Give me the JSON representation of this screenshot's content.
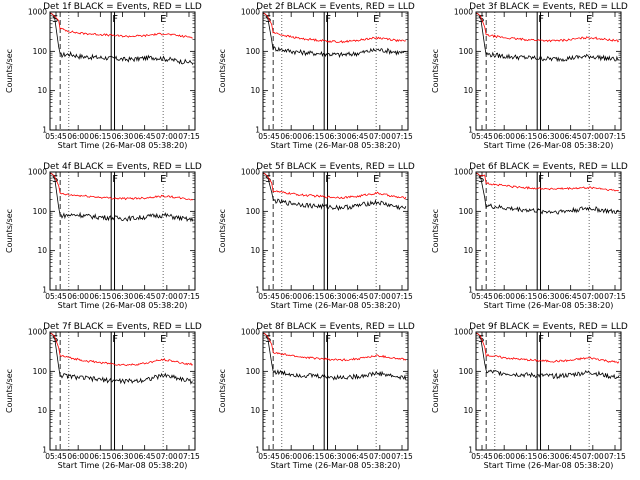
{
  "chart_data": [
    {
      "type": "line",
      "title": "Det 1f BLACK = Events, RED = LLD",
      "xlabel": "Start Time (26-Mar-08 05:38:20)",
      "ylabel": "Counts/sec",
      "yscale": "log",
      "ylim": [
        1,
        1000
      ],
      "x_ticks": [
        "05:45",
        "06:00",
        "06:15",
        "06:30",
        "06:45",
        "07:00",
        "07:15"
      ],
      "y_ticks": [
        "1",
        "10",
        "100",
        "1000"
      ],
      "markers": [
        {
          "label": "S",
          "pos": 0.0
        },
        {
          "label": "F",
          "pos": 0.422
        },
        {
          "label": "E",
          "pos": 0.78
        }
      ],
      "series": [
        {
          "name": "Events",
          "color": "#000000",
          "values": [
            80,
            85,
            75,
            72,
            70,
            68,
            65,
            62,
            64,
            68,
            70,
            65,
            60,
            55,
            52
          ]
        },
        {
          "name": "LLD",
          "color": "#ff0000",
          "values": [
            380,
            320,
            290,
            280,
            270,
            260,
            250,
            240,
            245,
            250,
            270,
            280,
            260,
            240,
            230
          ]
        }
      ]
    },
    {
      "type": "line",
      "title": "Det 2f BLACK = Events, RED = LLD",
      "xlabel": "Start Time (26-Mar-08 05:38:20)",
      "ylabel": "Counts/sec",
      "yscale": "log",
      "ylim": [
        1,
        1000
      ],
      "x_ticks": [
        "05:45",
        "06:00",
        "06:15",
        "06:30",
        "06:45",
        "07:00",
        "07:15"
      ],
      "y_ticks": [
        "1",
        "10",
        "100",
        "1000"
      ],
      "markers": [
        {
          "label": "S",
          "pos": 0.0
        },
        {
          "label": "F",
          "pos": 0.422
        },
        {
          "label": "E",
          "pos": 0.78
        }
      ],
      "series": [
        {
          "name": "Events",
          "color": "#000000",
          "values": [
            120,
            110,
            100,
            95,
            90,
            88,
            85,
            82,
            84,
            90,
            100,
            110,
            105,
            95,
            90
          ]
        },
        {
          "name": "LLD",
          "color": "#ff0000",
          "values": [
            300,
            260,
            230,
            210,
            200,
            190,
            180,
            175,
            180,
            190,
            210,
            220,
            210,
            190,
            180
          ]
        }
      ]
    },
    {
      "type": "line",
      "title": "Det 3f BLACK = Events, RED = LLD",
      "xlabel": "Start Time (26-Mar-08 05:38:20)",
      "ylabel": "Counts/sec",
      "yscale": "log",
      "ylim": [
        1,
        1000
      ],
      "x_ticks": [
        "05:45",
        "06:00",
        "06:15",
        "06:30",
        "06:45",
        "07:00",
        "07:15"
      ],
      "y_ticks": [
        "1",
        "10",
        "100",
        "1000"
      ],
      "markers": [
        {
          "label": "S",
          "pos": 0.0
        },
        {
          "label": "F",
          "pos": 0.422
        },
        {
          "label": "E",
          "pos": 0.78
        }
      ],
      "series": [
        {
          "name": "Events",
          "color": "#000000",
          "values": [
            85,
            80,
            75,
            72,
            70,
            68,
            66,
            64,
            65,
            68,
            72,
            75,
            70,
            65,
            62
          ]
        },
        {
          "name": "LLD",
          "color": "#ff0000",
          "values": [
            260,
            240,
            220,
            210,
            200,
            195,
            190,
            185,
            190,
            200,
            215,
            225,
            210,
            195,
            185
          ]
        }
      ]
    },
    {
      "type": "line",
      "title": "Det 4f BLACK = Events, RED = LLD",
      "xlabel": "Start Time (26-Mar-08 05:38:20)",
      "ylabel": "Counts/sec",
      "yscale": "log",
      "ylim": [
        1,
        1000
      ],
      "x_ticks": [
        "05:45",
        "06:00",
        "06:15",
        "06:30",
        "06:45",
        "07:00",
        "07:15"
      ],
      "y_ticks": [
        "1",
        "10",
        "100",
        "1000"
      ],
      "markers": [
        {
          "label": "S",
          "pos": 0.0
        },
        {
          "label": "F",
          "pos": 0.422
        },
        {
          "label": "E",
          "pos": 0.78
        }
      ],
      "series": [
        {
          "name": "Events",
          "color": "#000000",
          "values": [
            78,
            80,
            82,
            75,
            72,
            70,
            68,
            66,
            68,
            72,
            78,
            80,
            72,
            65,
            60
          ]
        },
        {
          "name": "LLD",
          "color": "#ff0000",
          "values": [
            280,
            260,
            250,
            240,
            230,
            220,
            215,
            210,
            215,
            220,
            235,
            245,
            230,
            210,
            200
          ]
        }
      ]
    },
    {
      "type": "line",
      "title": "Det 5f BLACK = Events, RED = LLD",
      "xlabel": "Start Time (26-Mar-08 05:38:20)",
      "ylabel": "Counts/sec",
      "yscale": "log",
      "ylim": [
        1,
        1000
      ],
      "x_ticks": [
        "05:45",
        "06:00",
        "06:15",
        "06:30",
        "06:45",
        "07:00",
        "07:15"
      ],
      "y_ticks": [
        "1",
        "10",
        "100",
        "1000"
      ],
      "markers": [
        {
          "label": "S",
          "pos": 0.0
        },
        {
          "label": "F",
          "pos": 0.422
        },
        {
          "label": "E",
          "pos": 0.78
        }
      ],
      "series": [
        {
          "name": "Events",
          "color": "#000000",
          "values": [
            190,
            170,
            160,
            150,
            140,
            135,
            130,
            125,
            130,
            140,
            160,
            170,
            150,
            130,
            120
          ]
        },
        {
          "name": "LLD",
          "color": "#ff0000",
          "values": [
            330,
            300,
            280,
            260,
            250,
            240,
            230,
            225,
            230,
            240,
            270,
            290,
            260,
            230,
            220
          ]
        }
      ]
    },
    {
      "type": "line",
      "title": "Det 6f BLACK = Events, RED = LLD",
      "xlabel": "Start Time (26-Mar-08 05:38:20)",
      "ylabel": "Counts/sec",
      "yscale": "log",
      "ylim": [
        1,
        1000
      ],
      "x_ticks": [
        "05:45",
        "06:00",
        "06:15",
        "06:30",
        "06:45",
        "07:00",
        "07:15"
      ],
      "y_ticks": [
        "1",
        "10",
        "100",
        "1000"
      ],
      "markers": [
        {
          "label": "S",
          "pos": 0.0
        },
        {
          "label": "F",
          "pos": 0.422
        },
        {
          "label": "E",
          "pos": 0.78
        }
      ],
      "series": [
        {
          "name": "Events",
          "color": "#000000",
          "values": [
            140,
            130,
            120,
            115,
            110,
            105,
            100,
            98,
            100,
            105,
            115,
            120,
            110,
            100,
            95
          ]
        },
        {
          "name": "LLD",
          "color": "#ff0000",
          "values": [
            520,
            480,
            450,
            420,
            400,
            390,
            380,
            370,
            375,
            380,
            390,
            400,
            380,
            350,
            330
          ]
        }
      ]
    },
    {
      "type": "line",
      "title": "Det 7f BLACK = Events, RED = LLD",
      "xlabel": "Start Time (26-Mar-08 05:38:20)",
      "ylabel": "Counts/sec",
      "yscale": "log",
      "ylim": [
        1,
        1000
      ],
      "x_ticks": [
        "05:45",
        "06:00",
        "06:15",
        "06:30",
        "06:45",
        "07:00",
        "07:15"
      ],
      "y_ticks": [
        "1",
        "10",
        "100",
        "1000"
      ],
      "markers": [
        {
          "label": "S",
          "pos": 0.0
        },
        {
          "label": "F",
          "pos": 0.422
        },
        {
          "label": "E",
          "pos": 0.78
        }
      ],
      "series": [
        {
          "name": "Events",
          "color": "#000000",
          "values": [
            80,
            75,
            70,
            66,
            62,
            60,
            58,
            56,
            58,
            62,
            70,
            80,
            72,
            62,
            55
          ]
        },
        {
          "name": "LLD",
          "color": "#ff0000",
          "values": [
            250,
            220,
            200,
            180,
            170,
            160,
            150,
            145,
            150,
            160,
            180,
            200,
            180,
            160,
            150
          ]
        }
      ]
    },
    {
      "type": "line",
      "title": "Det 8f BLACK = Events, RED = LLD",
      "xlabel": "Start Time (26-Mar-08 05:38:20)",
      "ylabel": "Counts/sec",
      "yscale": "log",
      "ylim": [
        1,
        1000
      ],
      "x_ticks": [
        "05:45",
        "06:00",
        "06:15",
        "06:30",
        "06:45",
        "07:00",
        "07:15"
      ],
      "y_ticks": [
        "1",
        "10",
        "100",
        "1000"
      ],
      "markers": [
        {
          "label": "S",
          "pos": 0.0
        },
        {
          "label": "F",
          "pos": 0.422
        },
        {
          "label": "E",
          "pos": 0.78
        }
      ],
      "series": [
        {
          "name": "Events",
          "color": "#000000",
          "values": [
            100,
            90,
            85,
            80,
            78,
            75,
            72,
            70,
            72,
            75,
            82,
            90,
            82,
            72,
            68
          ]
        },
        {
          "name": "LLD",
          "color": "#ff0000",
          "values": [
            300,
            270,
            250,
            230,
            220,
            210,
            200,
            195,
            200,
            210,
            230,
            250,
            230,
            210,
            200
          ]
        }
      ]
    },
    {
      "type": "line",
      "title": "Det 9f BLACK = Events, RED = LLD",
      "xlabel": "Start Time (26-Mar-08 05:38:20)",
      "ylabel": "Counts/sec",
      "yscale": "log",
      "ylim": [
        1,
        1000
      ],
      "x_ticks": [
        "05:45",
        "06:00",
        "06:15",
        "06:30",
        "06:45",
        "07:00",
        "07:15"
      ],
      "y_ticks": [
        "1",
        "10",
        "100",
        "1000"
      ],
      "markers": [
        {
          "label": "S",
          "pos": 0.0
        },
        {
          "label": "F",
          "pos": 0.422
        },
        {
          "label": "E",
          "pos": 0.78
        }
      ],
      "series": [
        {
          "name": "Events",
          "color": "#000000",
          "values": [
            100,
            95,
            90,
            85,
            82,
            80,
            78,
            76,
            78,
            82,
            90,
            95,
            85,
            75,
            70
          ]
        },
        {
          "name": "LLD",
          "color": "#ff0000",
          "values": [
            260,
            240,
            220,
            210,
            200,
            190,
            185,
            180,
            185,
            190,
            210,
            220,
            200,
            180,
            170
          ]
        }
      ]
    }
  ]
}
